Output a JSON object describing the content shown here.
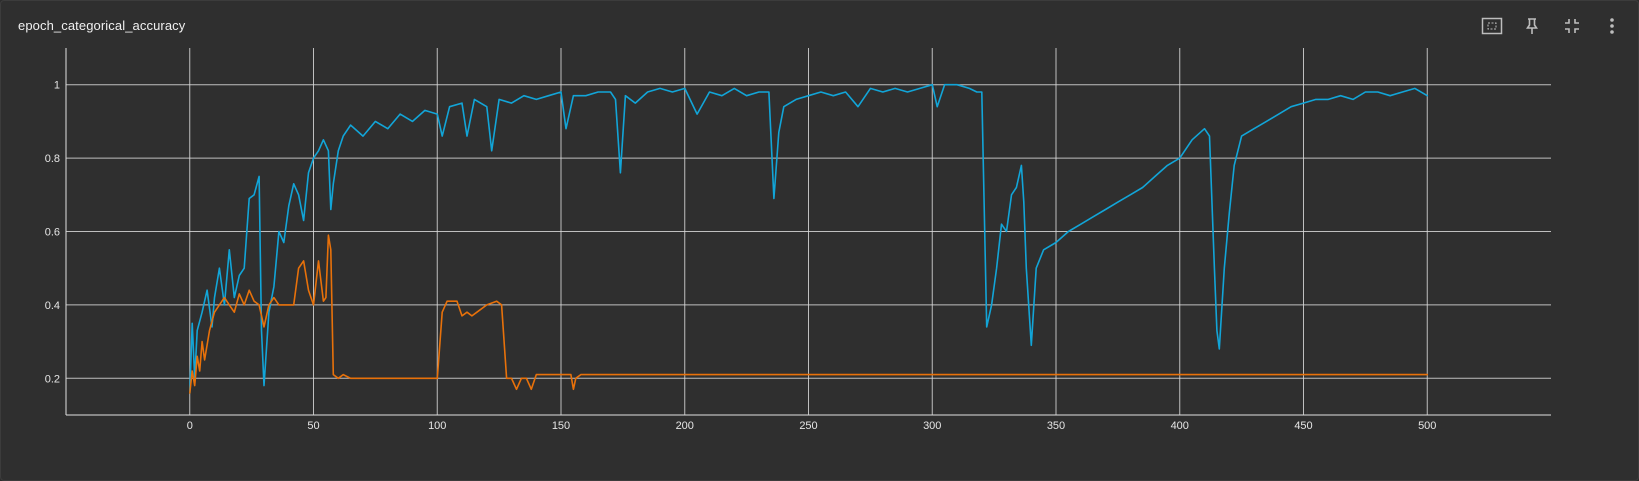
{
  "card": {
    "title": "epoch_categorical_accuracy"
  },
  "toolbar": [
    {
      "name": "fit-domain-button",
      "icon": "fit-to-screen-icon"
    },
    {
      "name": "pin-button",
      "icon": "pin-icon"
    },
    {
      "name": "collapse-button",
      "icon": "collapse-icon"
    },
    {
      "name": "more-options-button",
      "icon": "more-vert-icon"
    }
  ],
  "colors": {
    "background": "#2f2f2f",
    "grid": "#d9d9d9",
    "series_blue": "#12a5d8",
    "series_orange": "#e8710a"
  },
  "chart_data": {
    "type": "line",
    "title": "",
    "xlabel": "",
    "ylabel": "",
    "xlim": [
      -50,
      550
    ],
    "ylim": [
      0.1,
      1.1
    ],
    "x_ticks": [
      "0",
      "50",
      "100",
      "150",
      "200",
      "250",
      "300",
      "350",
      "400",
      "450",
      "500"
    ],
    "x_tick_values": [
      0,
      50,
      100,
      150,
      200,
      250,
      300,
      350,
      400,
      450,
      500
    ],
    "y_ticks": [
      "0.2",
      "0.4",
      "0.6",
      "0.8",
      "1"
    ],
    "y_tick_values": [
      0.2,
      0.4,
      0.6,
      0.8,
      1.0
    ],
    "grid": true,
    "legend": "none",
    "series": [
      {
        "color": "#12a5d8",
        "x": [
          0,
          1,
          2,
          3,
          5,
          7,
          9,
          10,
          12,
          14,
          16,
          18,
          20,
          22,
          24,
          26,
          28,
          29,
          30,
          32,
          34,
          36,
          38,
          40,
          42,
          44,
          46,
          48,
          50,
          52,
          54,
          56,
          57,
          58,
          60,
          62,
          65,
          70,
          75,
          80,
          85,
          90,
          95,
          100,
          102,
          105,
          110,
          112,
          115,
          120,
          122,
          125,
          130,
          135,
          140,
          145,
          150,
          152,
          155,
          160,
          165,
          170,
          172,
          174,
          176,
          180,
          185,
          190,
          195,
          200,
          205,
          210,
          215,
          220,
          225,
          230,
          234,
          236,
          238,
          240,
          245,
          250,
          255,
          260,
          265,
          270,
          275,
          280,
          285,
          290,
          295,
          300,
          302,
          305,
          310,
          315,
          318,
          320,
          322,
          324,
          326,
          328,
          330,
          332,
          334,
          336,
          337,
          338,
          340,
          342,
          345,
          350,
          355,
          360,
          365,
          370,
          375,
          380,
          385,
          390,
          395,
          400,
          405,
          410,
          412,
          414,
          415,
          416,
          418,
          420,
          422,
          425,
          430,
          435,
          440,
          445,
          450,
          455,
          460,
          465,
          470,
          475,
          480,
          485,
          490,
          495,
          500
        ],
        "values": [
          0.16,
          0.35,
          0.2,
          0.33,
          0.38,
          0.44,
          0.34,
          0.42,
          0.5,
          0.4,
          0.55,
          0.42,
          0.48,
          0.5,
          0.69,
          0.7,
          0.75,
          0.33,
          0.18,
          0.38,
          0.45,
          0.6,
          0.57,
          0.67,
          0.73,
          0.7,
          0.63,
          0.76,
          0.8,
          0.82,
          0.85,
          0.82,
          0.66,
          0.73,
          0.82,
          0.86,
          0.89,
          0.86,
          0.9,
          0.88,
          0.92,
          0.9,
          0.93,
          0.92,
          0.86,
          0.94,
          0.95,
          0.86,
          0.96,
          0.94,
          0.82,
          0.96,
          0.95,
          0.97,
          0.96,
          0.97,
          0.98,
          0.88,
          0.97,
          0.97,
          0.98,
          0.98,
          0.96,
          0.76,
          0.97,
          0.95,
          0.98,
          0.99,
          0.98,
          0.99,
          0.92,
          0.98,
          0.97,
          0.99,
          0.97,
          0.98,
          0.98,
          0.69,
          0.87,
          0.94,
          0.96,
          0.97,
          0.98,
          0.97,
          0.98,
          0.94,
          0.99,
          0.98,
          0.99,
          0.98,
          0.99,
          1.0,
          0.94,
          1.0,
          1.0,
          0.99,
          0.98,
          0.98,
          0.34,
          0.4,
          0.5,
          0.62,
          0.6,
          0.7,
          0.72,
          0.78,
          0.68,
          0.5,
          0.29,
          0.5,
          0.55,
          0.57,
          0.6,
          0.62,
          0.64,
          0.66,
          0.68,
          0.7,
          0.72,
          0.75,
          0.78,
          0.8,
          0.85,
          0.88,
          0.86,
          0.5,
          0.33,
          0.28,
          0.5,
          0.65,
          0.78,
          0.86,
          0.88,
          0.9,
          0.92,
          0.94,
          0.95,
          0.96,
          0.96,
          0.97,
          0.96,
          0.98,
          0.98,
          0.97,
          0.98,
          0.99,
          0.97
        ]
      },
      {
        "color": "#e8710a",
        "x": [
          0,
          1,
          2,
          3,
          4,
          5,
          6,
          8,
          10,
          12,
          14,
          16,
          18,
          20,
          22,
          24,
          26,
          28,
          30,
          32,
          34,
          36,
          38,
          40,
          42,
          44,
          46,
          48,
          50,
          52,
          54,
          55,
          56,
          57,
          58,
          60,
          62,
          65,
          70,
          80,
          90,
          100,
          102,
          104,
          106,
          108,
          110,
          112,
          114,
          116,
          120,
          124,
          126,
          128,
          130,
          132,
          134,
          136,
          138,
          140,
          150,
          154,
          155,
          156,
          158,
          160,
          200,
          300,
          400,
          500
        ],
        "values": [
          0.16,
          0.22,
          0.18,
          0.26,
          0.22,
          0.3,
          0.25,
          0.33,
          0.38,
          0.4,
          0.42,
          0.4,
          0.38,
          0.43,
          0.4,
          0.44,
          0.41,
          0.4,
          0.34,
          0.4,
          0.42,
          0.4,
          0.4,
          0.4,
          0.4,
          0.5,
          0.52,
          0.44,
          0.4,
          0.52,
          0.41,
          0.42,
          0.59,
          0.55,
          0.21,
          0.2,
          0.21,
          0.2,
          0.2,
          0.2,
          0.2,
          0.2,
          0.38,
          0.41,
          0.41,
          0.41,
          0.37,
          0.38,
          0.37,
          0.38,
          0.4,
          0.41,
          0.4,
          0.2,
          0.2,
          0.17,
          0.2,
          0.2,
          0.17,
          0.21,
          0.21,
          0.21,
          0.17,
          0.2,
          0.21,
          0.21,
          0.21,
          0.21,
          0.21,
          0.21
        ]
      }
    ]
  }
}
